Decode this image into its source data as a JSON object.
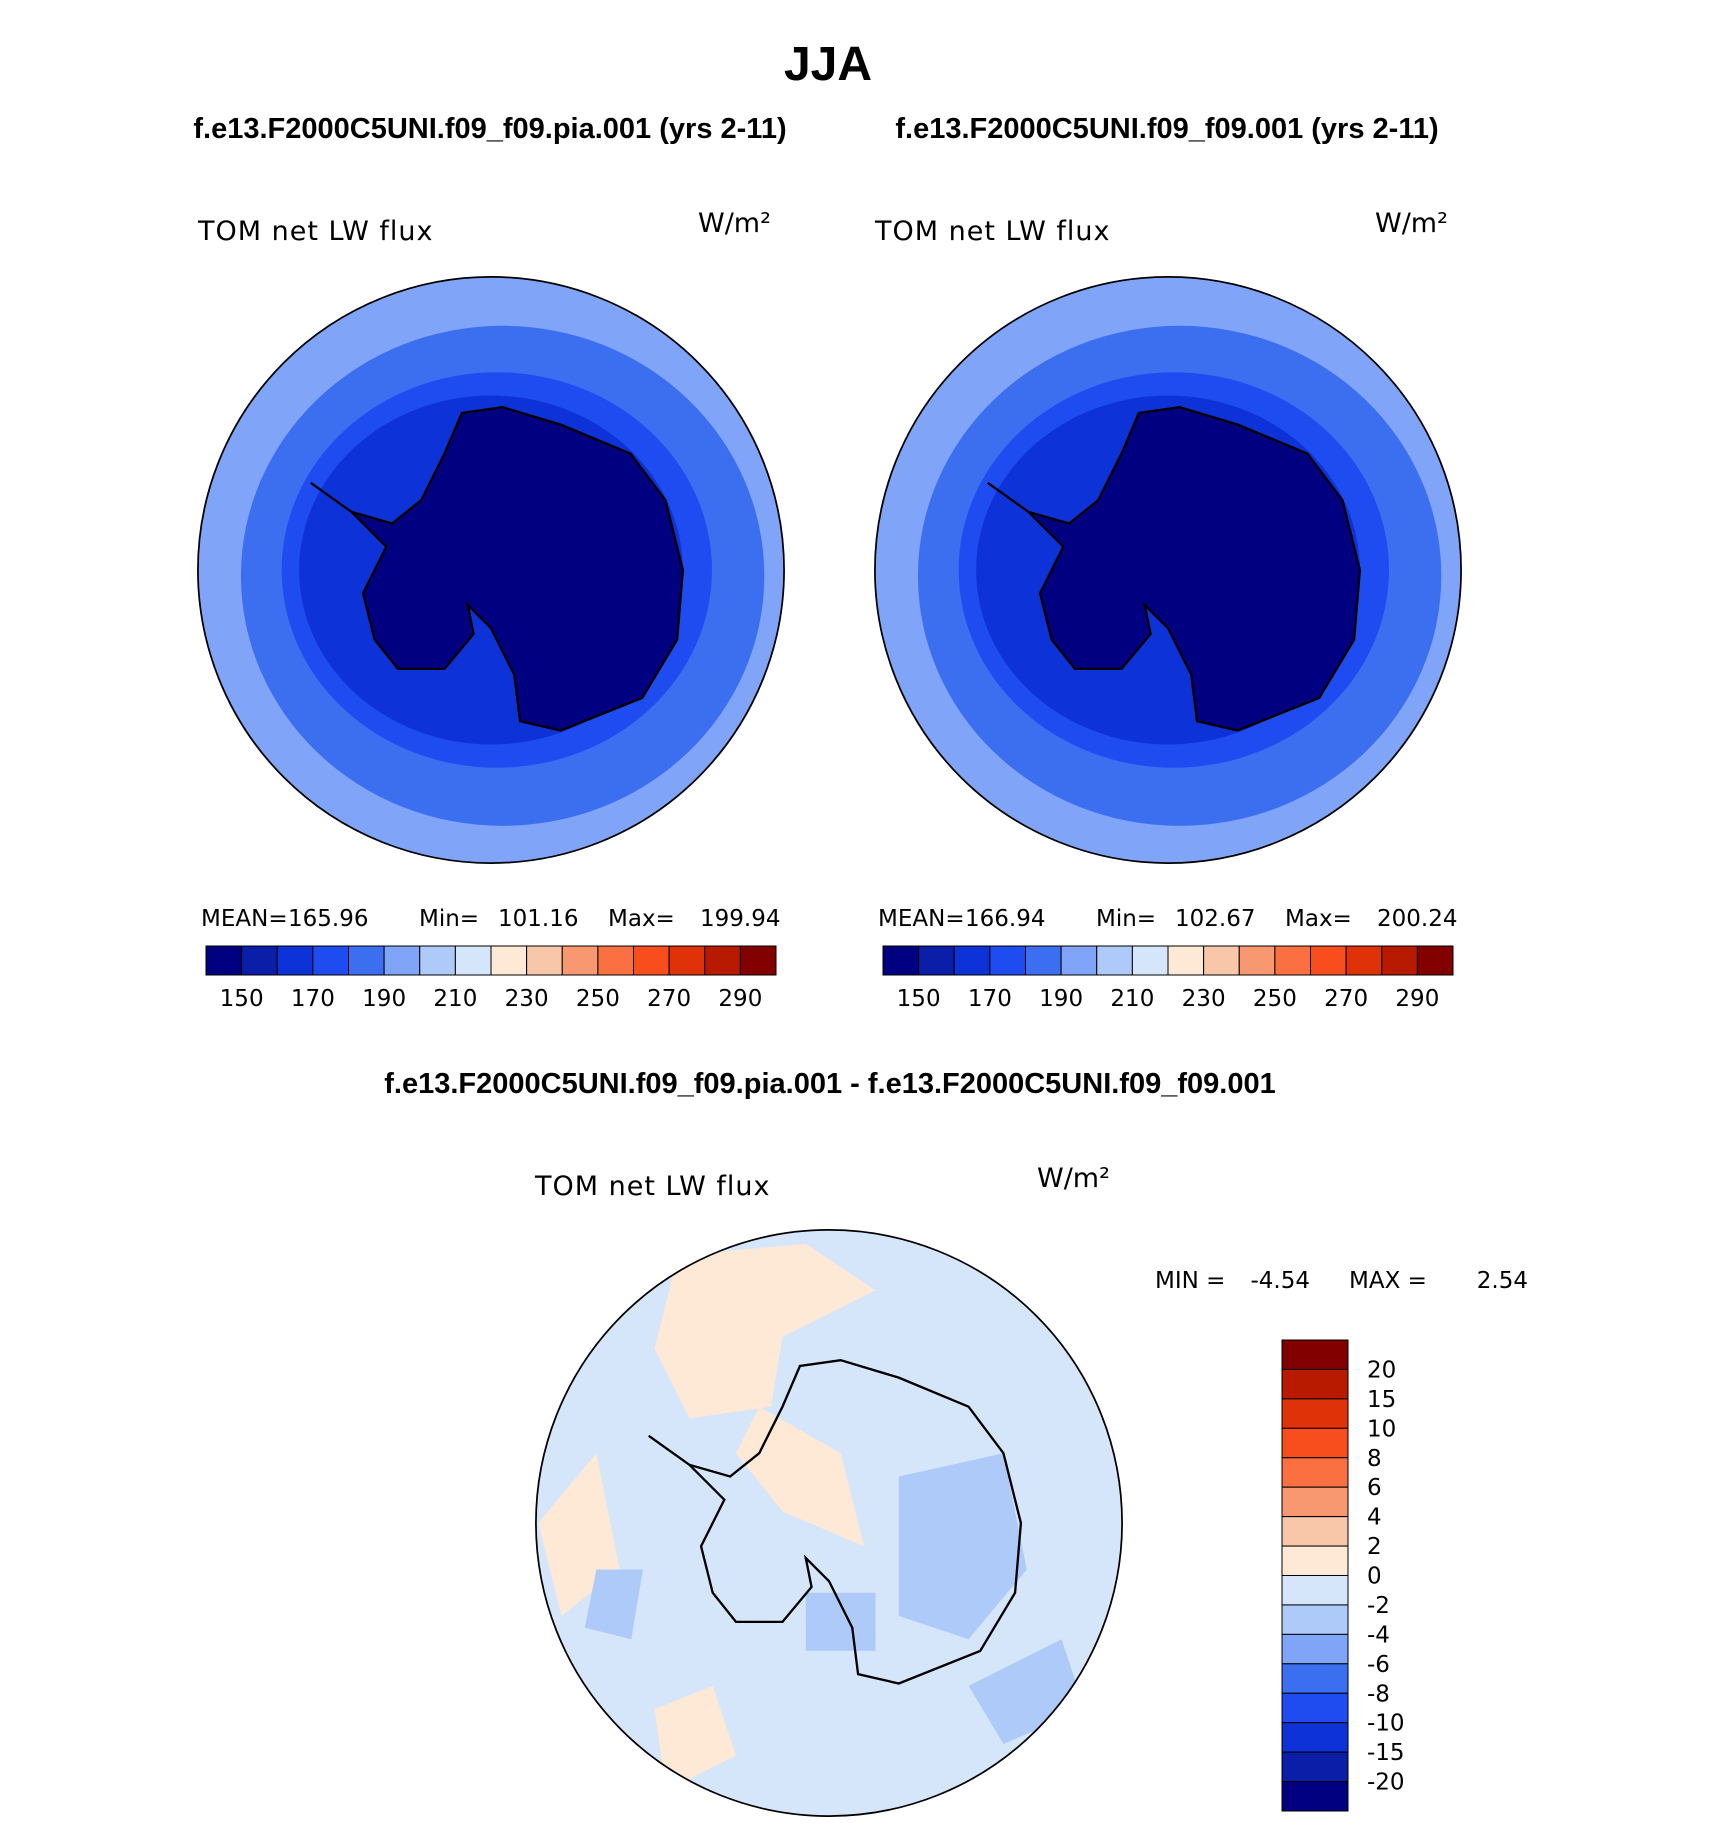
{
  "title": "JJA",
  "panels": [
    {
      "title": "f.e13.F2000C5UNI.f09_f09.pia.001 (yrs 2-11)",
      "field": "TOM net LW flux",
      "units": "W/m²",
      "stats": [
        {
          "label": "MEAN=",
          "value": 165.96
        },
        {
          "label": "Min=",
          "value": 101.16
        },
        {
          "label": "Max=",
          "value": 199.94
        }
      ],
      "colorbar_labels": [
        150,
        170,
        190,
        210,
        230,
        250,
        270,
        290
      ]
    },
    {
      "title": "f.e13.F2000C5UNI.f09_f09.001 (yrs 2-11)",
      "field": "TOM net LW flux",
      "units": "W/m²",
      "stats": [
        {
          "label": "MEAN=",
          "value": 166.94
        },
        {
          "label": "Min=",
          "value": 102.67
        },
        {
          "label": "Max=",
          "value": 200.24
        }
      ],
      "colorbar_labels": [
        150,
        170,
        190,
        210,
        230,
        250,
        270,
        290
      ]
    }
  ],
  "difference": {
    "title": "f.e13.F2000C5UNI.f09_f09.pia.001 - f.e13.F2000C5UNI.f09_f09.001",
    "field": "TOM net LW flux",
    "units": "W/m²",
    "stats": [
      {
        "label": "MIN =",
        "value": -4.54
      },
      {
        "label": "MAX =",
        "value": 2.54
      }
    ],
    "colorbar_labels": [
      20,
      15,
      10,
      8,
      6,
      4,
      2,
      0,
      -2,
      -4,
      -6,
      -8,
      -10,
      -15,
      -20
    ]
  },
  "colors": [
    "#000080",
    "#0a1ea8",
    "#0d32d8",
    "#1e4cf0",
    "#3c6ef0",
    "#7fa4f8",
    "#aecaf8",
    "#d6e6fa",
    "#fde9d6",
    "#f8c6a8",
    "#f89870",
    "#fa7040",
    "#f84e1e",
    "#e03208",
    "#b81a00",
    "#820000"
  ]
}
